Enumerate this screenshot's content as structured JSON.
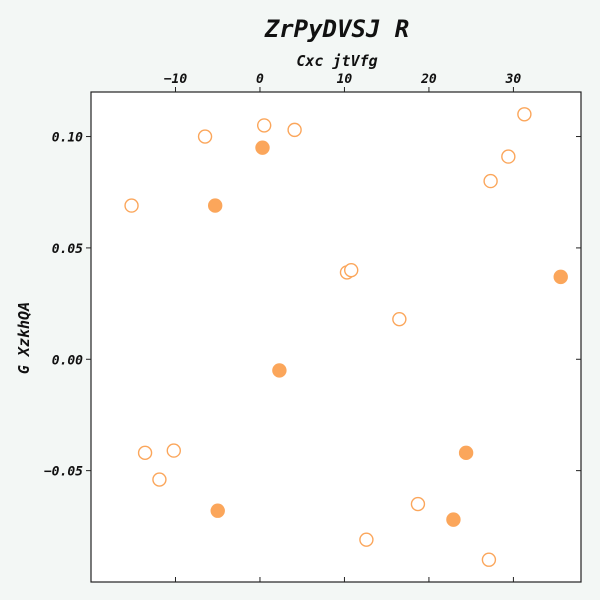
{
  "chart_data": {
    "type": "scatter",
    "title": "ZrPyDVSJ R",
    "xlabel": "Cxc jtVfg",
    "ylabel": "G XzkhQA",
    "x_axis_position": "top",
    "xlim": [
      -20,
      38
    ],
    "ylim": [
      -0.1,
      0.12
    ],
    "x_ticks": [
      -10,
      0,
      10,
      20,
      30
    ],
    "x_tick_labels": [
      "−10",
      "0",
      "10",
      "20",
      "30"
    ],
    "y_ticks": [
      -0.05,
      0.0,
      0.05,
      0.1
    ],
    "y_tick_labels": [
      "−0.05",
      "0.00",
      "0.05",
      "0.10"
    ],
    "grid": false,
    "marker_color": "#fba65b",
    "series": [
      {
        "marker": "open-circle",
        "points": [
          {
            "x": -15.2,
            "y": 0.069
          },
          {
            "x": -6.5,
            "y": 0.1
          },
          {
            "x": 0.5,
            "y": 0.105
          },
          {
            "x": 4.1,
            "y": 0.103
          },
          {
            "x": 31.3,
            "y": 0.11
          },
          {
            "x": 29.4,
            "y": 0.091
          },
          {
            "x": 27.3,
            "y": 0.08
          },
          {
            "x": 10.3,
            "y": 0.039
          },
          {
            "x": 10.8,
            "y": 0.04
          },
          {
            "x": 16.5,
            "y": 0.018
          },
          {
            "x": -13.6,
            "y": -0.042
          },
          {
            "x": -10.2,
            "y": -0.041
          },
          {
            "x": -11.9,
            "y": -0.054
          },
          {
            "x": 18.7,
            "y": -0.065
          },
          {
            "x": 12.6,
            "y": -0.081
          },
          {
            "x": 27.1,
            "y": -0.09
          }
        ]
      },
      {
        "marker": "filled-circle",
        "points": [
          {
            "x": 0.3,
            "y": 0.095
          },
          {
            "x": -5.3,
            "y": 0.069
          },
          {
            "x": 35.6,
            "y": 0.037
          },
          {
            "x": 2.3,
            "y": -0.005
          },
          {
            "x": 24.4,
            "y": -0.042
          },
          {
            "x": -5.0,
            "y": -0.068
          },
          {
            "x": 22.9,
            "y": -0.072
          }
        ]
      }
    ]
  }
}
